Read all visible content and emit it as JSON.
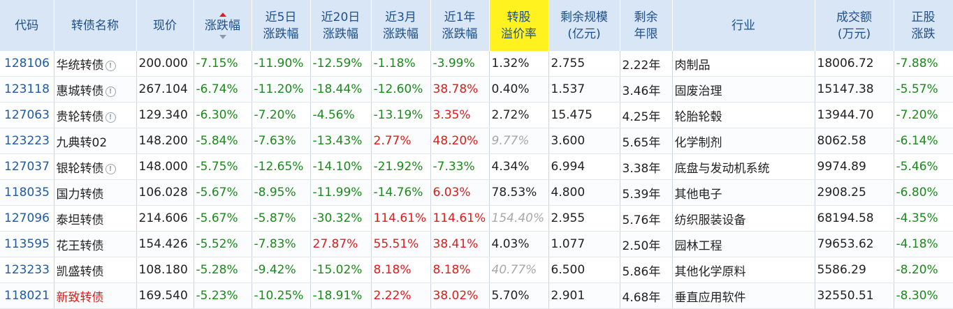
{
  "headers": {
    "code": "代码",
    "name": "转债名称",
    "price": "现价",
    "change": "涨跌幅",
    "change_5d": [
      "近5日",
      "涨跌幅"
    ],
    "change_20d": [
      "近20日",
      "涨跌幅"
    ],
    "change_3m": [
      "近3月",
      "涨跌幅"
    ],
    "change_1y": [
      "近1年",
      "涨跌幅"
    ],
    "premium": [
      "转股",
      "溢价率"
    ],
    "remaining_size": [
      "剩余规模",
      "(亿元)"
    ],
    "remaining_years": [
      "剩余",
      "年限"
    ],
    "industry": "行业",
    "volume": [
      "成交额",
      "(万元)"
    ],
    "stock_change": [
      "正股",
      "涨跌"
    ]
  },
  "colors": {
    "header_bg": "#d9e6f5",
    "header_highlight": "#fff21f",
    "up": "#e01b1b",
    "down": "#1a8a1a",
    "code": "#1f5aa6"
  },
  "sort": {
    "column": "change",
    "icon_up": "sort-up-icon",
    "icon_down": "sort-down-icon"
  },
  "rows": [
    {
      "code": "128106",
      "name": "华统转债",
      "info": true,
      "name_red": false,
      "price": "200.000",
      "change": "-7.15%",
      "c5": "-11.90%",
      "c20": "-12.59%",
      "c3m": "-1.18%",
      "c1y": "-3.99%",
      "premium": "1.32%",
      "premium_grey": false,
      "size": "2.755",
      "years": "2.22年",
      "industry": "肉制品",
      "volume": "18006.72",
      "stock": "-7.88%"
    },
    {
      "code": "123118",
      "name": "惠城转债",
      "info": true,
      "name_red": false,
      "price": "267.104",
      "change": "-6.74%",
      "c5": "-11.20%",
      "c20": "-18.44%",
      "c3m": "-12.60%",
      "c1y": "38.78%",
      "premium": "0.40%",
      "premium_grey": false,
      "size": "1.537",
      "years": "3.46年",
      "industry": "固废治理",
      "volume": "15147.38",
      "stock": "-5.57%"
    },
    {
      "code": "127063",
      "name": "贵轮转债",
      "info": true,
      "name_red": false,
      "price": "129.340",
      "change": "-6.30%",
      "c5": "-7.20%",
      "c20": "-4.56%",
      "c3m": "-13.19%",
      "c1y": "3.35%",
      "premium": "2.72%",
      "premium_grey": false,
      "size": "15.475",
      "years": "4.25年",
      "industry": "轮胎轮毂",
      "volume": "13944.70",
      "stock": "-7.20%"
    },
    {
      "code": "123223",
      "name": "九典转02",
      "info": false,
      "name_red": false,
      "price": "148.200",
      "change": "-5.84%",
      "c5": "-7.63%",
      "c20": "-13.43%",
      "c3m": "2.77%",
      "c1y": "48.20%",
      "premium": "9.77%",
      "premium_grey": true,
      "size": "3.600",
      "years": "5.65年",
      "industry": "化学制剂",
      "volume": "8062.58",
      "stock": "-6.14%"
    },
    {
      "code": "127037",
      "name": "银轮转债",
      "info": true,
      "name_red": false,
      "price": "148.000",
      "change": "-5.75%",
      "c5": "-12.65%",
      "c20": "-14.10%",
      "c3m": "-21.92%",
      "c1y": "-7.33%",
      "premium": "4.34%",
      "premium_grey": false,
      "size": "6.994",
      "years": "3.38年",
      "industry": "底盘与发动机系统",
      "volume": "9974.89",
      "stock": "-5.46%"
    },
    {
      "code": "118035",
      "name": "国力转债",
      "info": false,
      "name_red": false,
      "price": "106.028",
      "change": "-5.67%",
      "c5": "-8.95%",
      "c20": "-11.99%",
      "c3m": "-14.76%",
      "c1y": "6.03%",
      "premium": "78.53%",
      "premium_grey": false,
      "size": "4.800",
      "years": "5.39年",
      "industry": "其他电子",
      "volume": "2908.25",
      "stock": "-6.80%"
    },
    {
      "code": "127096",
      "name": "泰坦转债",
      "info": false,
      "name_red": false,
      "price": "214.606",
      "change": "-5.67%",
      "c5": "-5.87%",
      "c20": "-30.32%",
      "c3m": "114.61%",
      "c1y": "114.61%",
      "premium": "154.40%",
      "premium_grey": true,
      "size": "2.955",
      "years": "5.76年",
      "industry": "纺织服装设备",
      "volume": "68194.58",
      "stock": "-4.35%"
    },
    {
      "code": "113595",
      "name": "花王转债",
      "info": false,
      "name_red": false,
      "price": "154.426",
      "change": "-5.52%",
      "c5": "-7.83%",
      "c20": "27.87%",
      "c3m": "55.51%",
      "c1y": "38.41%",
      "premium": "4.03%",
      "premium_grey": false,
      "size": "1.077",
      "years": "2.50年",
      "industry": "园林工程",
      "volume": "79653.62",
      "stock": "-4.18%"
    },
    {
      "code": "123233",
      "name": "凯盛转债",
      "info": false,
      "name_red": false,
      "price": "108.180",
      "change": "-5.28%",
      "c5": "-9.42%",
      "c20": "-15.02%",
      "c3m": "8.18%",
      "c1y": "8.18%",
      "premium": "40.77%",
      "premium_grey": true,
      "size": "6.500",
      "years": "5.86年",
      "industry": "其他化学原料",
      "volume": "5586.29",
      "stock": "-8.20%"
    },
    {
      "code": "118021",
      "name": "新致转债",
      "info": false,
      "name_red": true,
      "price": "169.540",
      "change": "-5.23%",
      "c5": "-10.25%",
      "c20": "-18.91%",
      "c3m": "2.22%",
      "c1y": "38.02%",
      "premium": "5.70%",
      "premium_grey": false,
      "size": "2.901",
      "years": "4.68年",
      "industry": "垂直应用软件",
      "volume": "32550.51",
      "stock": "-8.30%"
    }
  ]
}
